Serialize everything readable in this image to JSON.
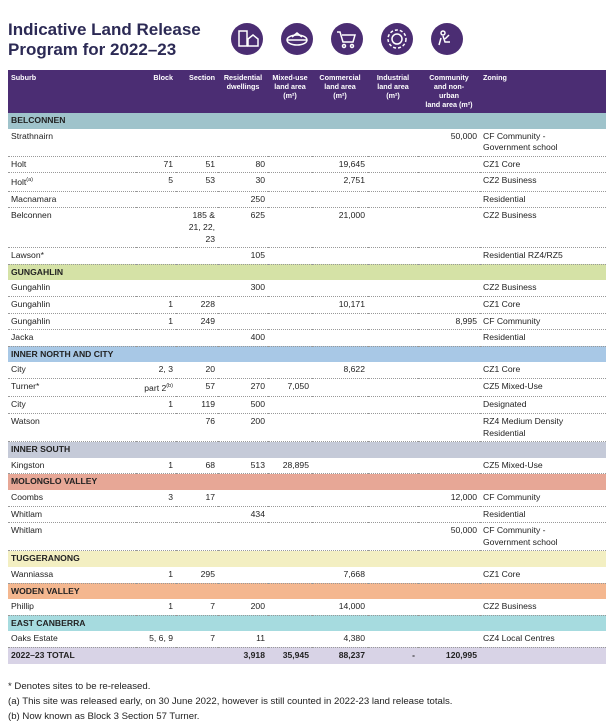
{
  "header": {
    "title": "Indicative Land Release\nProgram for 2022–23"
  },
  "table": {
    "columns": [
      "Suburb",
      "Block",
      "Section",
      "Residential\ndwellings",
      "Mixed-use\nland area\n(m²)",
      "Commercial\nland area\n(m²)",
      "Industrial\nland area\n(m²)",
      "Community\nand non-\nurban\nland area (m²)",
      "Zoning"
    ],
    "groups": [
      {
        "name": "BELCONNEN",
        "color": "#9fc3cb",
        "rows": [
          {
            "suburb": "Strathnairn",
            "community": "50,000",
            "zoning": "CF Community -\nGovernment school"
          },
          {
            "suburb": "Holt",
            "block": "71",
            "section": "51",
            "dwellings": "80",
            "commercial": "19,645",
            "zoning": "CZ1 Core"
          },
          {
            "suburb": "Holt",
            "note": "(a)",
            "block": "5",
            "section": "53",
            "dwellings": "30",
            "commercial": "2,751",
            "zoning": "CZ2 Business"
          },
          {
            "suburb": "Macnamara",
            "dwellings": "250",
            "zoning": "Residential"
          },
          {
            "suburb": "Belconnen",
            "section": "185 &\n21, 22,\n23",
            "dwellings": "625",
            "commercial": "21,000",
            "zoning": "CZ2 Business"
          },
          {
            "suburb": "Lawson*",
            "dwellings": "105",
            "zoning": "Residential RZ4/RZ5"
          }
        ]
      },
      {
        "name": "GUNGAHLIN",
        "color": "#d5e2a6",
        "rows": [
          {
            "suburb": "Gungahlin",
            "dwellings": "300",
            "zoning": "CZ2 Business"
          },
          {
            "suburb": "Gungahlin",
            "block": "1",
            "section": "228",
            "commercial": "10,171",
            "zoning": "CZ1 Core"
          },
          {
            "suburb": "Gungahlin",
            "block": "1",
            "section": "249",
            "community": "8,995",
            "zoning": "CF Community"
          },
          {
            "suburb": "Jacka",
            "dwellings": "400",
            "zoning": "Residential"
          }
        ]
      },
      {
        "name": "INNER NORTH AND CITY",
        "color": "#a8c8e6",
        "rows": [
          {
            "suburb": "City",
            "block": "2, 3",
            "section": "20",
            "commercial": "8,622",
            "zoning": "CZ1 Core"
          },
          {
            "suburb": "Turner*",
            "block": "part 2",
            "blocknote": "(b)",
            "section": "57",
            "dwellings": "270",
            "mixed": "7,050",
            "zoning": "CZ5 Mixed-Use"
          },
          {
            "suburb": "City",
            "block": "1",
            "section": "119",
            "dwellings": "500",
            "zoning": "Designated"
          },
          {
            "suburb": "Watson",
            "section": "76",
            "dwellings": "200",
            "zoning": "RZ4 Medium Density\nResidential"
          }
        ]
      },
      {
        "name": "INNER SOUTH",
        "color": "#c5cad8",
        "rows": [
          {
            "suburb": "Kingston",
            "block": "1",
            "section": "68",
            "dwellings": "513",
            "mixed": "28,895",
            "zoning": "CZ5 Mixed-Use"
          }
        ]
      },
      {
        "name": "MOLONGLO VALLEY",
        "color": "#e7a796",
        "rows": [
          {
            "suburb": "Coombs",
            "block": "3",
            "section": "17",
            "community": "12,000",
            "zoning": "CF Community"
          },
          {
            "suburb": "Whitlam",
            "dwellings": "434",
            "zoning": "Residential"
          },
          {
            "suburb": "Whitlam",
            "community": "50,000",
            "zoning": "CF Community -\nGovernment school"
          }
        ]
      },
      {
        "name": "TUGGERANONG",
        "color": "#f3efc2",
        "rows": [
          {
            "suburb": "Wanniassa",
            "block": "1",
            "section": "295",
            "commercial": "7,668",
            "zoning": "CZ1 Core"
          }
        ]
      },
      {
        "name": "WODEN VALLEY",
        "color": "#f4b78f",
        "rows": [
          {
            "suburb": "Phillip",
            "block": "1",
            "section": "7",
            "dwellings": "200",
            "commercial": "14,000",
            "zoning": "CZ2 Business"
          }
        ]
      },
      {
        "name": "EAST CANBERRA",
        "color": "#a6dbdf",
        "rows": [
          {
            "suburb": "Oaks Estate",
            "block": "5, 6, 9",
            "section": "7",
            "dwellings": "11",
            "commercial": "4,380",
            "zoning": "CZ4 Local Centres"
          }
        ]
      }
    ],
    "total": {
      "suburb": "2022–23 TOTAL",
      "dwellings": "3,918",
      "mixed": "35,945",
      "commercial": "88,237",
      "industrial": "-",
      "community": "120,995"
    }
  },
  "footnotes": [
    "* Denotes sites to be re-released.",
    "(a) This site was released early, on 30 June 2022, however is still counted in 2022-23 land release totals.",
    "(b) Now known as Block 3 Section 57 Turner."
  ]
}
